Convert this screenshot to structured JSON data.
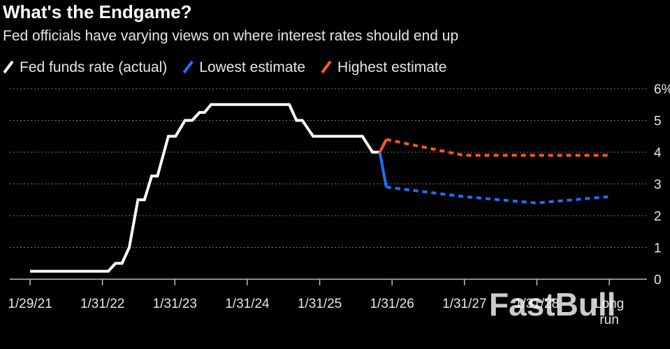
{
  "chart_data": {
    "type": "line",
    "title": "What's the Endgame?",
    "subtitle": "Fed officials have varying views on where interest rates should end up",
    "watermark": "FastBull",
    "xlim": [
      2020.8,
      2029.6
    ],
    "xticks": [
      {
        "value": 2021.08,
        "label": "1/29/21"
      },
      {
        "value": 2022.08,
        "label": "1/31/22"
      },
      {
        "value": 2023.08,
        "label": "1/31/23"
      },
      {
        "value": 2024.08,
        "label": "1/31/24"
      },
      {
        "value": 2025.08,
        "label": "1/31/25"
      },
      {
        "value": 2026.08,
        "label": "1/31/26"
      },
      {
        "value": 2027.08,
        "label": "1/31/27"
      },
      {
        "value": 2028.08,
        "label": "1/31/28"
      },
      {
        "value": 2029.08,
        "label": "Long run"
      }
    ],
    "ylim": [
      0,
      6
    ],
    "yticks": [
      0,
      1,
      2,
      3,
      4,
      5,
      {
        "value": 6,
        "label": "6%"
      }
    ],
    "grid": true,
    "series": [
      {
        "name": "Fed funds rate (actual)",
        "color": "#ffffff",
        "style": "solid",
        "x": [
          2021.08,
          2022.16,
          2022.26,
          2022.35,
          2022.45,
          2022.57,
          2022.66,
          2022.76,
          2022.84,
          2022.93,
          2022.99,
          2023.09,
          2023.22,
          2023.32,
          2023.42,
          2023.49,
          2023.58,
          2024.66,
          2024.76,
          2024.84,
          2024.99,
          2025.67,
          2025.81,
          2025.91
        ],
        "values": [
          0.25,
          0.25,
          0.5,
          0.5,
          1.0,
          2.5,
          2.5,
          3.25,
          3.25,
          4.0,
          4.5,
          4.5,
          5.0,
          5.0,
          5.25,
          5.25,
          5.5,
          5.5,
          5.0,
          5.0,
          4.5,
          4.5,
          4.0,
          4.0
        ]
      },
      {
        "name": "Lowest estimate",
        "color": "#1f6fff",
        "style": "dotted",
        "x": [
          2025.91,
          2026.0,
          2027.07,
          2028.07,
          2029.08
        ],
        "values": [
          4.0,
          2.9,
          2.6,
          2.4,
          2.6
        ]
      },
      {
        "name": "Highest estimate",
        "color": "#ff5a1f",
        "style": "dotted",
        "x": [
          2025.91,
          2026.0,
          2027.07,
          2028.07,
          2029.08
        ],
        "values": [
          4.0,
          4.4,
          3.9,
          3.9,
          3.9
        ]
      }
    ]
  }
}
